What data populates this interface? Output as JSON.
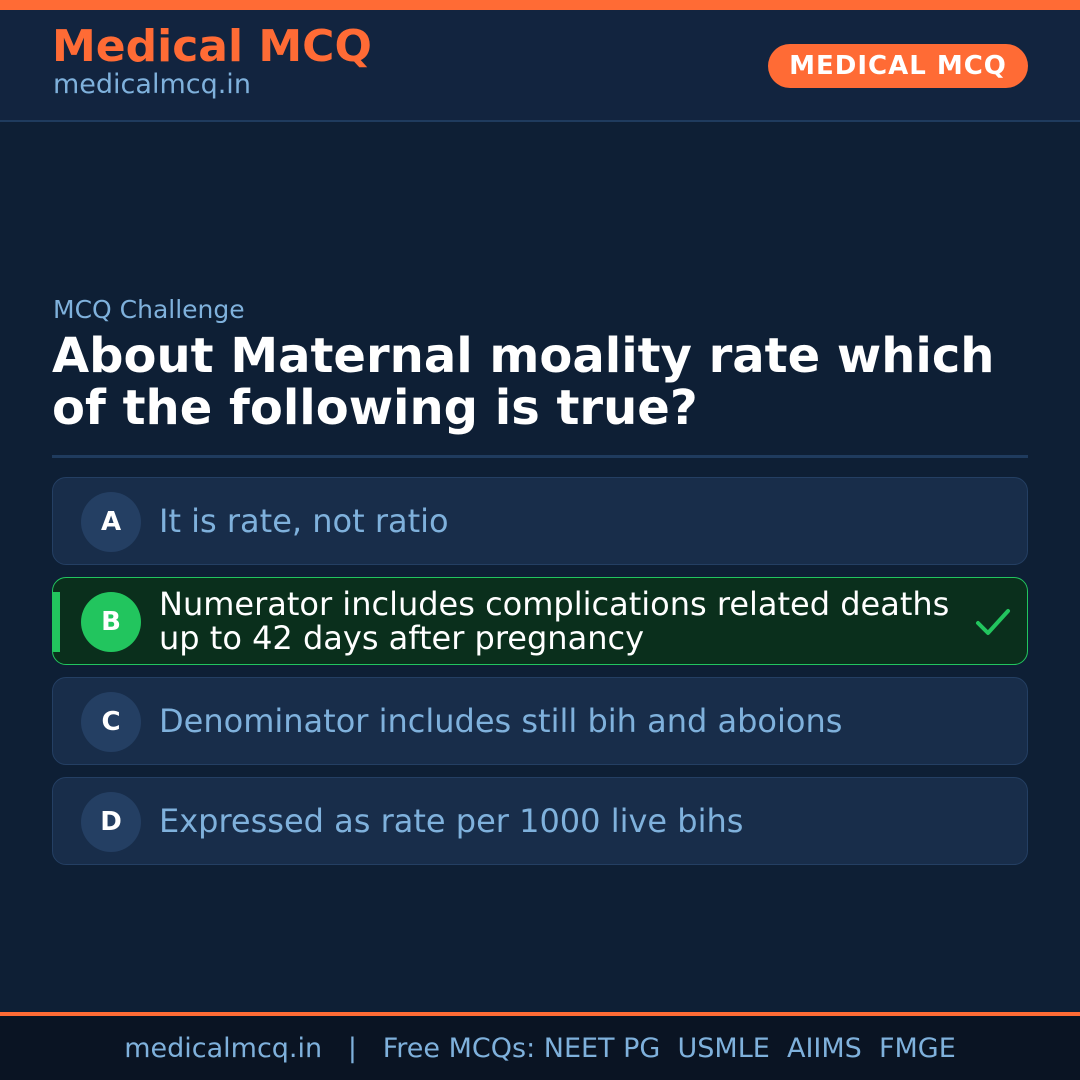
{
  "header": {
    "brand_title": "Medical MCQ",
    "brand_url": "medicalmcq.in",
    "badge": "MEDICAL MCQ"
  },
  "question": {
    "kicker": "MCQ Challenge",
    "text": "About Maternal moality rate which of the following is true?"
  },
  "options": [
    {
      "letter": "A",
      "text": "It is rate, not ratio",
      "correct": false
    },
    {
      "letter": "B",
      "text": "Numerator includes complications related deaths up to 42 days after pregnancy",
      "correct": true
    },
    {
      "letter": "C",
      "text": "Denominator includes still bih and aboions",
      "correct": false
    },
    {
      "letter": "D",
      "text": "Expressed as rate per 1000 live bihs",
      "correct": false
    }
  ],
  "footer": {
    "text": "medicalmcq.in   |   Free MCQs: NEET PG  USMLE  AIIMS  FMGE"
  },
  "colors": {
    "accent": "#ff6b35",
    "background": "#0e1f35",
    "correct": "#22c55e",
    "muted_text": "#7fb1dc"
  },
  "icons": {
    "correct_marker": "check-icon"
  }
}
